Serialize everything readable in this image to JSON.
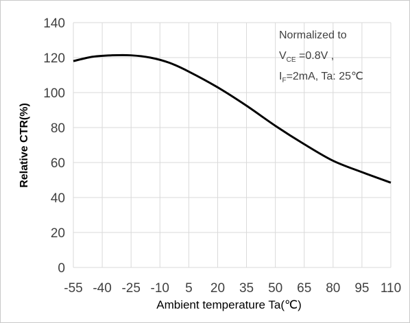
{
  "chart_data": {
    "type": "line",
    "xlabel": "Ambient temperature Ta(℃)",
    "ylabel": "Relative CTR(%)",
    "x_ticks": [
      "-55",
      "-40",
      "-25",
      "-10",
      "5",
      "20",
      "35",
      "50",
      "65",
      "80",
      "95",
      "110"
    ],
    "y_ticks": [
      "0",
      "20",
      "40",
      "60",
      "80",
      "100",
      "120",
      "140"
    ],
    "xlim": [
      -55,
      110
    ],
    "ylim": [
      0,
      140
    ],
    "grid": {
      "x": true,
      "y": true
    },
    "annotation": {
      "line1": "Normalized to",
      "line2_main": "V",
      "line2_sub": "CE",
      "line2_rest": " =0.8V ,",
      "line3_main": "I",
      "line3_sub": "F",
      "line3_rest": "=2mA, Ta: 25℃"
    },
    "series": [
      {
        "color": "#000000",
        "x": [
          -55,
          -45,
          -35,
          -25,
          -15,
          -5,
          5,
          20,
          35,
          50,
          65,
          80,
          95,
          110
        ],
        "y": [
          118,
          120.5,
          121.3,
          121.3,
          120,
          117,
          112,
          103,
          92.5,
          81,
          70.5,
          61,
          54.5,
          48.5
        ]
      }
    ]
  }
}
